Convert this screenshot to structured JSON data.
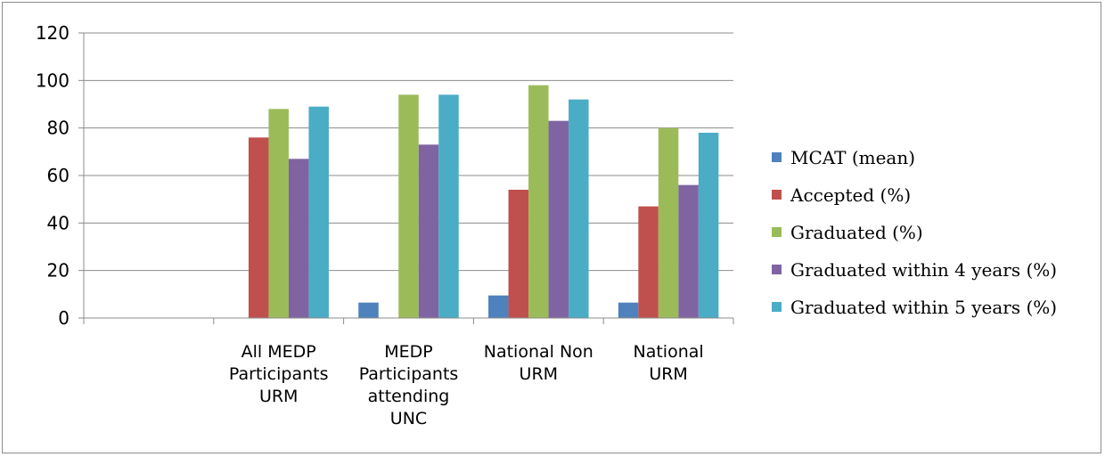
{
  "chart_data": {
    "type": "bar",
    "categories": [
      [
        "",
        "",
        ""
      ],
      [
        "All MEDP",
        "Participants",
        "URM"
      ],
      [
        "MEDP",
        "Participants",
        "attending",
        "UNC"
      ],
      [
        "National Non",
        "URM"
      ],
      [
        "National",
        "URM"
      ]
    ],
    "series": [
      {
        "name": "MCAT (mean)",
        "color": "#4f81bd",
        "values": [
          null,
          null,
          6.5,
          9.5,
          6.5
        ]
      },
      {
        "name": "Accepted (%)",
        "color": "#c0504d",
        "values": [
          null,
          76,
          null,
          54,
          47
        ]
      },
      {
        "name": "Graduated (%)",
        "color": "#9bbb59",
        "values": [
          null,
          88,
          94,
          98,
          80
        ]
      },
      {
        "name": "Graduated within 4 years (%)",
        "color": "#8064a2",
        "values": [
          null,
          67,
          73,
          83,
          56
        ]
      },
      {
        "name": "Graduated within 5 years (%)",
        "color": "#4bacc6",
        "values": [
          null,
          89,
          94,
          92,
          78
        ]
      }
    ],
    "yticks": [
      "0",
      "20",
      "40",
      "60",
      "80",
      "100",
      "120"
    ],
    "ylim": [
      0,
      120
    ],
    "grid": true,
    "legend": "right"
  }
}
